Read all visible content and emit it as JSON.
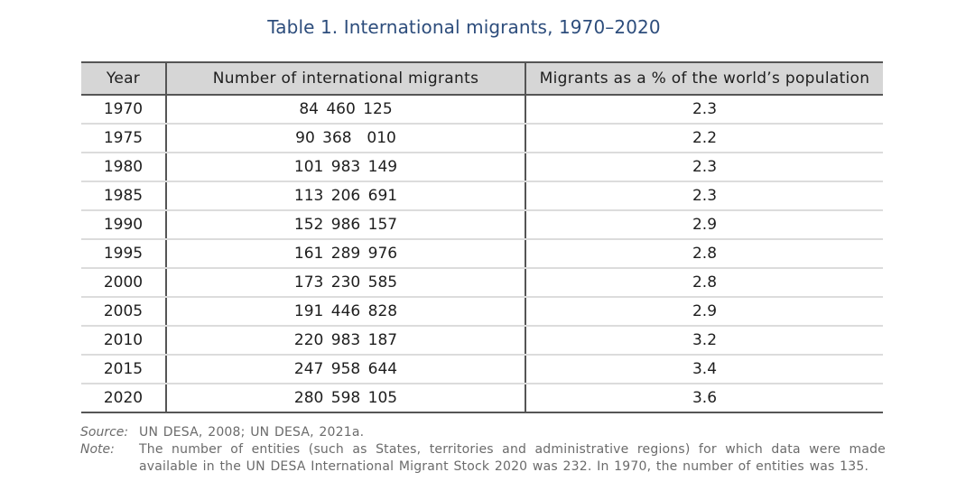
{
  "title": "Table 1. International migrants, 1970–2020",
  "table": {
    "headers": {
      "year": "Year",
      "number": "Number of international migrants",
      "percent": "Migrants as a % of the world’s population"
    },
    "rows": [
      {
        "year": "1970",
        "number": "84 460 125",
        "percent": "2.3"
      },
      {
        "year": "1975",
        "number": "90 368  010",
        "percent": "2.2"
      },
      {
        "year": "1980",
        "number": "101 983 149",
        "percent": "2.3"
      },
      {
        "year": "1985",
        "number": "113 206 691",
        "percent": "2.3"
      },
      {
        "year": "1990",
        "number": "152 986 157",
        "percent": "2.9"
      },
      {
        "year": "1995",
        "number": "161 289 976",
        "percent": "2.8"
      },
      {
        "year": "2000",
        "number": "173 230 585",
        "percent": "2.8"
      },
      {
        "year": "2005",
        "number": "191 446 828",
        "percent": "2.9"
      },
      {
        "year": "2010",
        "number": "220 983 187",
        "percent": "3.2"
      },
      {
        "year": "2015",
        "number": "247 958 644",
        "percent": "3.4"
      },
      {
        "year": "2020",
        "number": "280 598 105",
        "percent": "3.6"
      }
    ]
  },
  "footnotes": {
    "source_label": "Source:",
    "source_text": "UN DESA, 2008; UN DESA, 2021a.",
    "note_label": "Note:",
    "note_text": "The number of entities (such as States, territories and administrative regions) for which data were made available in the UN DESA International Migrant Stock 2020 was 232. In 1970, the number of entities was 135."
  },
  "colors": {
    "title": "#2d4d7c",
    "header_bg": "#d6d6d6",
    "rule": "#555555",
    "row_divider": "#dcdcdc",
    "note_text": "#6b6b6b"
  }
}
